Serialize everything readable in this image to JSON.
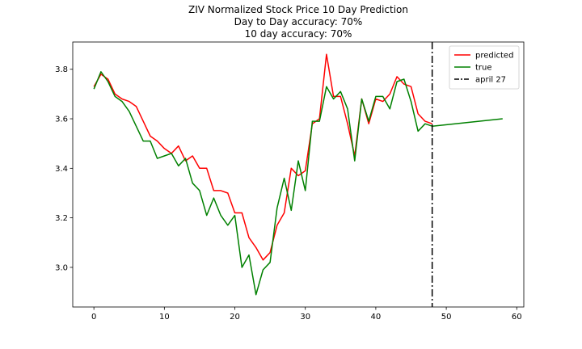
{
  "chart_data": {
    "type": "line",
    "title_lines": [
      "ZIV Normalized Stock Price 10 Day Prediction",
      "Day to Day accuracy: 70%",
      "10 day accuracy: 70%"
    ],
    "xlabel": "",
    "ylabel": "",
    "xlim": [
      -3,
      61
    ],
    "ylim": [
      2.84,
      3.91
    ],
    "xticks": [
      0,
      10,
      20,
      30,
      40,
      50,
      60
    ],
    "yticks": [
      3.0,
      3.2,
      3.4,
      3.6,
      3.8
    ],
    "ytick_labels": [
      "3.0",
      "3.2",
      "3.4",
      "3.6",
      "3.8"
    ],
    "grid": false,
    "legend_position": "top-right",
    "series": [
      {
        "name": "predicted",
        "color": "#ff0000",
        "x": [
          0,
          1,
          2,
          3,
          4,
          5,
          6,
          7,
          8,
          9,
          10,
          11,
          12,
          13,
          14,
          15,
          16,
          17,
          18,
          19,
          20,
          21,
          22,
          23,
          24,
          25,
          26,
          27,
          28,
          29,
          30,
          31,
          32,
          33,
          34,
          35,
          36,
          37,
          38,
          39,
          40,
          41,
          42,
          43,
          44,
          45,
          46,
          47,
          48
        ],
        "values": [
          3.73,
          3.78,
          3.76,
          3.7,
          3.68,
          3.67,
          3.65,
          3.59,
          3.53,
          3.51,
          3.48,
          3.46,
          3.49,
          3.43,
          3.45,
          3.4,
          3.4,
          3.31,
          3.31,
          3.3,
          3.22,
          3.22,
          3.12,
          3.08,
          3.03,
          3.06,
          3.17,
          3.22,
          3.4,
          3.37,
          3.39,
          3.58,
          3.6,
          3.86,
          3.69,
          3.69,
          3.58,
          3.45,
          3.68,
          3.58,
          3.68,
          3.67,
          3.7,
          3.77,
          3.74,
          3.73,
          3.62,
          3.59,
          3.58
        ]
      },
      {
        "name": "true",
        "color": "#008000",
        "x": [
          0,
          1,
          2,
          3,
          4,
          5,
          6,
          7,
          8,
          9,
          10,
          11,
          12,
          13,
          14,
          15,
          16,
          17,
          18,
          19,
          20,
          21,
          22,
          23,
          24,
          25,
          26,
          27,
          28,
          29,
          30,
          31,
          32,
          33,
          34,
          35,
          36,
          37,
          38,
          39,
          40,
          41,
          42,
          43,
          44,
          45,
          46,
          47,
          48,
          58
        ],
        "values": [
          3.72,
          3.79,
          3.75,
          3.69,
          3.67,
          3.63,
          3.57,
          3.51,
          3.51,
          3.44,
          3.45,
          3.46,
          3.41,
          3.44,
          3.34,
          3.31,
          3.21,
          3.28,
          3.21,
          3.17,
          3.21,
          3.0,
          3.05,
          2.89,
          2.99,
          3.02,
          3.24,
          3.36,
          3.23,
          3.43,
          3.31,
          3.59,
          3.59,
          3.73,
          3.68,
          3.71,
          3.64,
          3.43,
          3.68,
          3.59,
          3.69,
          3.69,
          3.64,
          3.75,
          3.76,
          3.67,
          3.55,
          3.58,
          3.57,
          3.6
        ]
      }
    ],
    "vline": {
      "x": 48,
      "label": "april 27",
      "color": "#000000",
      "style": "dashdot"
    }
  }
}
